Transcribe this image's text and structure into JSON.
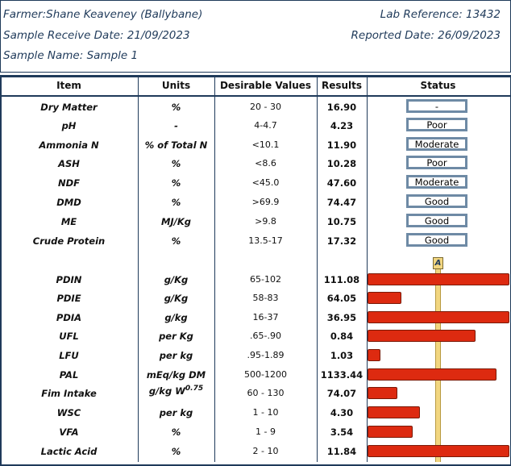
{
  "header": {
    "farmer": "Farmer:Shane Keaveney (Ballybane)",
    "lab_reference": "Lab Reference: 13432",
    "sample_receive_date": "Sample Receive Date: 21/09/2023",
    "reported_date": "Reported Date: 26/09/2023",
    "sample_name": "Sample Name: Sample 1"
  },
  "columns": [
    "Item",
    "Units",
    "Desirable Values",
    "Results",
    "Status"
  ],
  "marker_label": "A",
  "rows": [
    {
      "item": "Dry Matter",
      "units": "%",
      "desirable": "20 - 30",
      "result": "16.90",
      "status": "-"
    },
    {
      "item": "pH",
      "units": "-",
      "desirable": "4-4.7",
      "result": "4.23",
      "status": "Poor"
    },
    {
      "item": "Ammonia N",
      "units": "% of Total N",
      "desirable": "<10.1",
      "result": "11.90",
      "status": "Moderate"
    },
    {
      "item": "ASH",
      "units": "%",
      "desirable": "<8.6",
      "result": "10.28",
      "status": "Poor"
    },
    {
      "item": "NDF",
      "units": "%",
      "desirable": "<45.0",
      "result": "47.60",
      "status": "Moderate"
    },
    {
      "item": "DMD",
      "units": "%",
      "desirable": ">69.9",
      "result": "74.47",
      "status": "Good"
    },
    {
      "item": "ME",
      "units": "MJ/Kg",
      "desirable": ">9.8",
      "result": "10.75",
      "status": "Good"
    },
    {
      "item": "Crude Protein",
      "units": "%",
      "desirable": "13.5-17",
      "result": "17.32",
      "status": "Good"
    },
    {
      "item": "PDIN",
      "units": "g/Kg",
      "desirable": "65-102",
      "result": "111.08",
      "bar_fraction": 1.0
    },
    {
      "item": "PDIE",
      "units": "g/Kg",
      "desirable": "58-83",
      "result": "64.05",
      "bar_fraction": 0.24
    },
    {
      "item": "PDIA",
      "units": "g/kg",
      "desirable": "16-37",
      "result": "36.95",
      "bar_fraction": 1.0
    },
    {
      "item": "UFL",
      "units": "per Kg",
      "desirable": ".65-.90",
      "result": "0.84",
      "bar_fraction": 0.76
    },
    {
      "item": "LFU",
      "units": "per kg",
      "desirable": ".95-1.89",
      "result": "1.03",
      "bar_fraction": 0.09
    },
    {
      "item": "PAL",
      "units": "mEq/kg DM",
      "desirable": "500-1200",
      "result": "1133.44",
      "bar_fraction": 0.91
    },
    {
      "item": "Fim Intake",
      "units": "g/kg W",
      "units_sup": "0.75",
      "desirable": "60 - 130",
      "result": "74.07",
      "bar_fraction": 0.21
    },
    {
      "item": "WSC",
      "units": "per kg",
      "desirable": "1 - 10",
      "result": "4.30",
      "bar_fraction": 0.37
    },
    {
      "item": "VFA",
      "units": "%",
      "desirable": "1 - 9",
      "result": "3.54",
      "bar_fraction": 0.32
    },
    {
      "item": "Lactic Acid",
      "units": "%",
      "desirable": "2 - 10",
      "result": "11.84",
      "bar_fraction": 1.0
    }
  ],
  "colors": {
    "frame": "#1f3a5a",
    "bar": "#dd2a10",
    "status_border": "#6e8aa5",
    "marker": "#f2d680"
  }
}
